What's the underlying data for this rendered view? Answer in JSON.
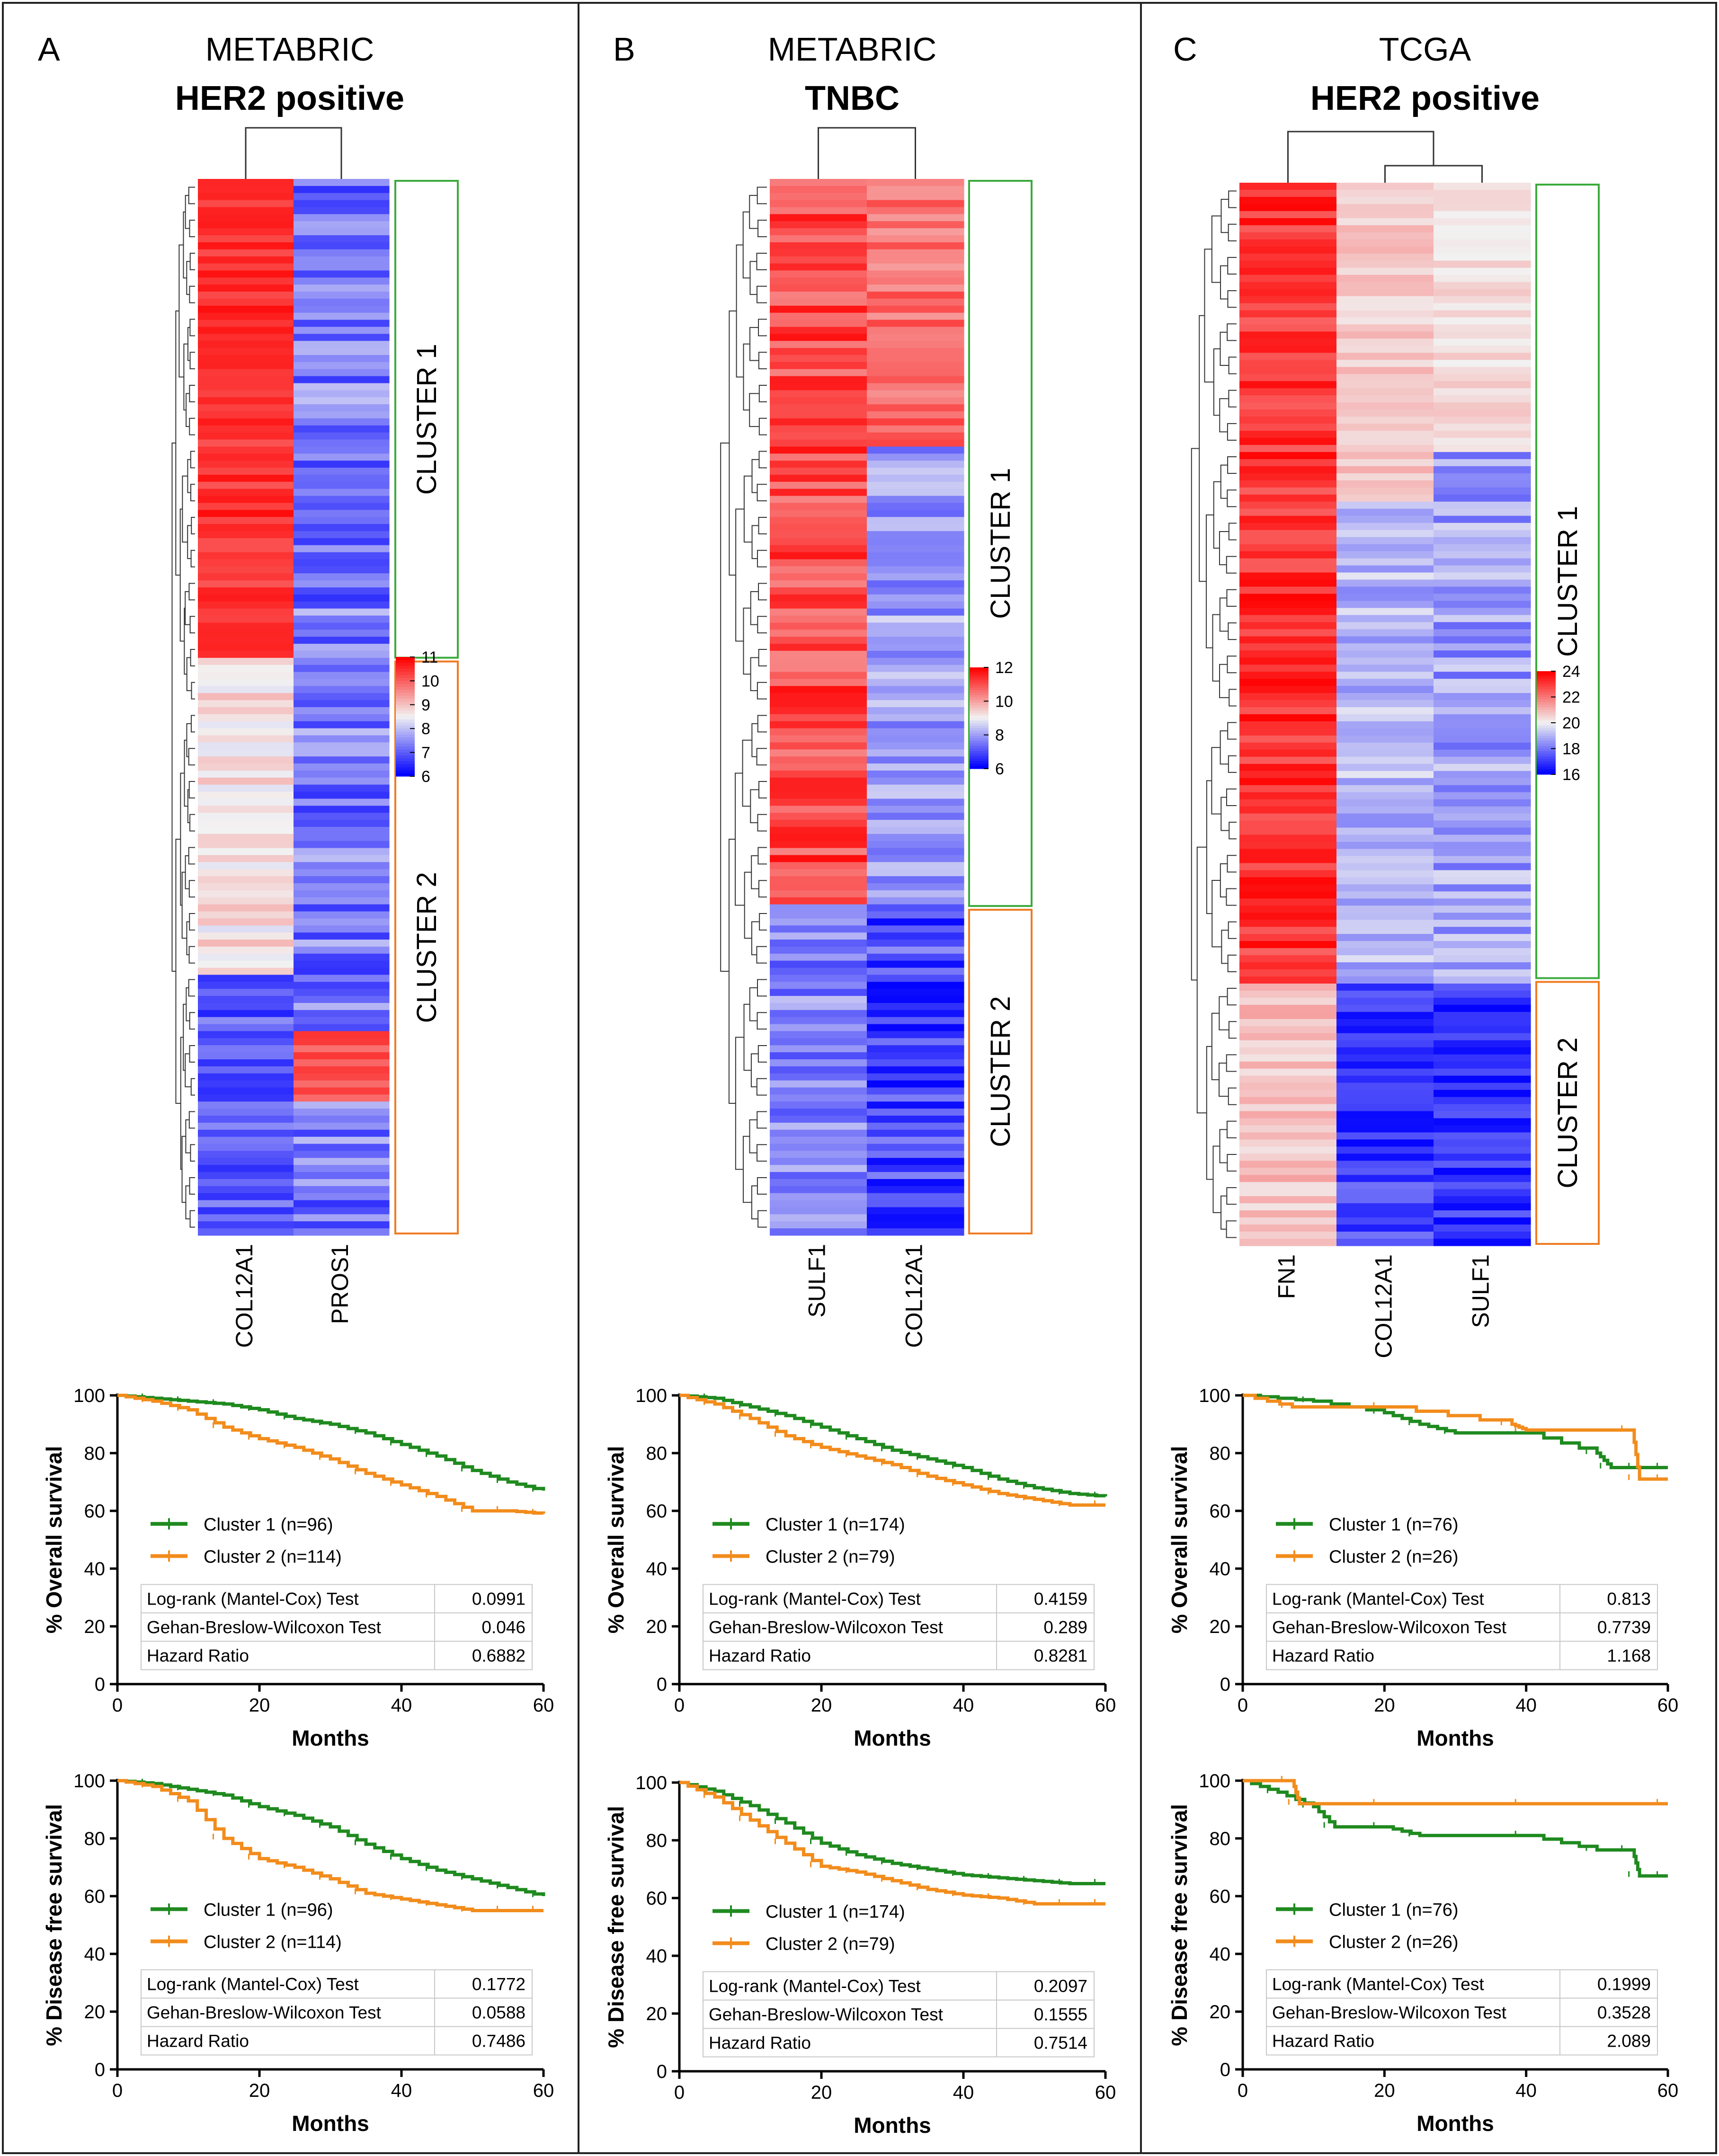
{
  "colors": {
    "cluster1_box": "#3caa3c",
    "cluster2_box": "#ef7b22",
    "cluster1_line": "#1f8a1f",
    "cluster2_line": "#f28c1c",
    "low": "#0000ff",
    "mid": "#f2f2f2",
    "high": "#ff0000"
  },
  "panels": [
    {
      "letter": "A",
      "dataset": "METABRIC",
      "subtype": "HER2 positive",
      "genes": [
        "COL12A1",
        "PROS1"
      ],
      "clusters": [
        {
          "label": "CLUSTER 1",
          "fraction": 0.455
        },
        {
          "label": "CLUSTER 2",
          "fraction": 0.545
        }
      ],
      "colorbar": {
        "ticks": [
          "11",
          "10",
          "9",
          "8",
          "7",
          "6"
        ]
      },
      "os": {
        "ylabel": "% Overall survival",
        "xlabel": "Months",
        "xticks": [
          "0",
          "20",
          "40",
          "60"
        ],
        "yticks": [
          "0",
          "20",
          "40",
          "60",
          "80",
          "100"
        ],
        "legend": [
          "Cluster 1 (n=96)",
          "Cluster 2 (n=114)"
        ],
        "stats": [
          [
            "Log-rank (Mantel-Cox) Test",
            "0.0991"
          ],
          [
            "Gehan-Breslow-Wilcoxon Test",
            "0.046"
          ],
          [
            "Hazard Ratio",
            "0.6882"
          ]
        ]
      },
      "dfs": {
        "ylabel": "% Disease free survival",
        "xlabel": "Months",
        "xticks": [
          "0",
          "20",
          "40",
          "60"
        ],
        "yticks": [
          "0",
          "20",
          "40",
          "60",
          "80",
          "100"
        ],
        "legend": [
          "Cluster 1 (n=96)",
          "Cluster 2 (n=114)"
        ],
        "stats": [
          [
            "Log-rank (Mantel-Cox) Test",
            "0.1772"
          ],
          [
            "Gehan-Breslow-Wilcoxon Test",
            "0.0588"
          ],
          [
            "Hazard Ratio",
            "0.7486"
          ]
        ]
      }
    },
    {
      "letter": "B",
      "dataset": "METABRIC",
      "subtype": "TNBC",
      "genes": [
        "SULF1",
        "COL12A1"
      ],
      "clusters": [
        {
          "label": "CLUSTER 1",
          "fraction": 0.69
        },
        {
          "label": "CLUSTER 2",
          "fraction": 0.31
        }
      ],
      "colorbar": {
        "ticks": [
          "12",
          "10",
          "8",
          "6"
        ]
      },
      "os": {
        "ylabel": "% Overall survival",
        "xlabel": "Months",
        "xticks": [
          "0",
          "20",
          "40",
          "60"
        ],
        "yticks": [
          "0",
          "20",
          "40",
          "60",
          "80",
          "100"
        ],
        "legend": [
          "Cluster 1 (n=174)",
          "Cluster 2 (n=79)"
        ],
        "stats": [
          [
            "Log-rank (Mantel-Cox) Test",
            "0.4159"
          ],
          [
            "Gehan-Breslow-Wilcoxon Test",
            "0.289"
          ],
          [
            "Hazard Ratio",
            "0.8281"
          ]
        ]
      },
      "dfs": {
        "ylabel": "% Disease free survival",
        "xlabel": "Months",
        "xticks": [
          "0",
          "20",
          "40",
          "60"
        ],
        "yticks": [
          "0",
          "20",
          "40",
          "60",
          "80",
          "100"
        ],
        "legend": [
          "Cluster 1 (n=174)",
          "Cluster 2 (n=79)"
        ],
        "stats": [
          [
            "Log-rank (Mantel-Cox) Test",
            "0.2097"
          ],
          [
            "Gehan-Breslow-Wilcoxon Test",
            "0.1555"
          ],
          [
            "Hazard Ratio",
            "0.7514"
          ]
        ]
      }
    },
    {
      "letter": "C",
      "dataset": "TCGA",
      "subtype": "HER2 positive",
      "genes": [
        "FN1",
        "COL12A1",
        "SULF1"
      ],
      "clusters": [
        {
          "label": "CLUSTER 1",
          "fraction": 0.75
        },
        {
          "label": "CLUSTER 2",
          "fraction": 0.25
        }
      ],
      "colorbar": {
        "ticks": [
          "24",
          "22",
          "20",
          "18",
          "16"
        ]
      },
      "os": {
        "ylabel": "% Overall survival",
        "xlabel": "Months",
        "xticks": [
          "0",
          "20",
          "40",
          "60"
        ],
        "yticks": [
          "0",
          "20",
          "40",
          "60",
          "80",
          "100"
        ],
        "legend": [
          "Cluster 1 (n=76)",
          "Cluster 2 (n=26)"
        ],
        "stats": [
          [
            "Log-rank (Mantel-Cox) Test",
            "0.813"
          ],
          [
            "Gehan-Breslow-Wilcoxon Test",
            "0.7739"
          ],
          [
            "Hazard Ratio",
            "1.168"
          ]
        ]
      },
      "dfs": {
        "ylabel": "% Disease free survival",
        "xlabel": "Months",
        "xticks": [
          "0",
          "20",
          "40",
          "60"
        ],
        "yticks": [
          "0",
          "20",
          "40",
          "60",
          "80",
          "100"
        ],
        "legend": [
          "Cluster 1 (n=76)",
          "Cluster 2 (n=26)"
        ],
        "stats": [
          [
            "Log-rank (Mantel-Cox) Test",
            "0.1999"
          ],
          [
            "Gehan-Breslow-Wilcoxon Test",
            "0.3528"
          ],
          [
            "Hazard Ratio",
            "2.089"
          ]
        ]
      }
    }
  ],
  "chart_data": [
    {
      "type": "line",
      "title": "A METABRIC HER2 positive - Overall survival",
      "xlabel": "Months",
      "ylabel": "% Overall survival",
      "xlim": [
        0,
        60
      ],
      "ylim": [
        0,
        100
      ],
      "series": [
        {
          "name": "Cluster 1 (n=96)",
          "x": [
            0,
            5,
            10,
            15,
            20,
            25,
            30,
            35,
            40,
            45,
            50,
            55,
            60
          ],
          "y": [
            100,
            99,
            98,
            97,
            95,
            92,
            90,
            87,
            83,
            79,
            74,
            70,
            67
          ]
        },
        {
          "name": "Cluster 2 (n=114)",
          "x": [
            0,
            5,
            10,
            15,
            20,
            25,
            30,
            35,
            40,
            45,
            50,
            55,
            60
          ],
          "y": [
            100,
            98,
            95,
            89,
            85,
            82,
            78,
            73,
            69,
            65,
            60,
            60,
            59
          ]
        }
      ]
    },
    {
      "type": "line",
      "title": "A METABRIC HER2 positive - Disease free survival",
      "xlabel": "Months",
      "ylabel": "% Disease free survival",
      "xlim": [
        0,
        60
      ],
      "ylim": [
        0,
        100
      ],
      "series": [
        {
          "name": "Cluster 1 (n=96)",
          "x": [
            0,
            5,
            10,
            15,
            20,
            25,
            30,
            35,
            40,
            45,
            50,
            55,
            60
          ],
          "y": [
            100,
            99,
            97,
            95,
            91,
            88,
            84,
            78,
            73,
            69,
            66,
            63,
            60
          ]
        },
        {
          "name": "Cluster 2 (n=114)",
          "x": [
            0,
            5,
            10,
            15,
            20,
            25,
            30,
            35,
            40,
            45,
            50,
            55,
            60
          ],
          "y": [
            100,
            98,
            93,
            80,
            73,
            70,
            66,
            61,
            59,
            57,
            55,
            55,
            55
          ]
        }
      ]
    },
    {
      "type": "line",
      "title": "B METABRIC TNBC - Overall survival",
      "xlabel": "Months",
      "ylabel": "% Overall survival",
      "xlim": [
        0,
        60
      ],
      "ylim": [
        0,
        100
      ],
      "series": [
        {
          "name": "Cluster 1 (n=174)",
          "x": [
            0,
            5,
            10,
            15,
            20,
            25,
            30,
            35,
            40,
            45,
            50,
            55,
            60
          ],
          "y": [
            100,
            99,
            96,
            93,
            89,
            85,
            81,
            78,
            75,
            71,
            68,
            66,
            65
          ]
        },
        {
          "name": "Cluster 2 (n=79)",
          "x": [
            0,
            5,
            10,
            15,
            20,
            25,
            30,
            35,
            40,
            45,
            50,
            55,
            60
          ],
          "y": [
            100,
            97,
            92,
            86,
            82,
            79,
            76,
            72,
            69,
            66,
            64,
            62,
            62
          ]
        }
      ]
    },
    {
      "type": "line",
      "title": "B METABRIC TNBC - Disease free survival",
      "xlabel": "Months",
      "ylabel": "% Disease free survival",
      "xlim": [
        0,
        60
      ],
      "ylim": [
        0,
        100
      ],
      "series": [
        {
          "name": "Cluster 1 (n=174)",
          "x": [
            0,
            5,
            10,
            15,
            20,
            25,
            30,
            35,
            40,
            45,
            50,
            55,
            60
          ],
          "y": [
            100,
            97,
            92,
            86,
            79,
            75,
            72,
            70,
            68,
            67,
            66,
            65,
            65
          ]
        },
        {
          "name": "Cluster 2 (n=79)",
          "x": [
            0,
            5,
            10,
            15,
            20,
            25,
            30,
            35,
            40,
            45,
            50,
            55,
            60
          ],
          "y": [
            100,
            95,
            87,
            79,
            71,
            69,
            66,
            63,
            61,
            60,
            58,
            58,
            58
          ]
        }
      ]
    },
    {
      "type": "line",
      "title": "C TCGA HER2 positive - Overall survival",
      "xlabel": "Months",
      "ylabel": "% Overall survival",
      "xlim": [
        0,
        60
      ],
      "ylim": [
        0,
        100
      ],
      "series": [
        {
          "name": "Cluster 1 (n=76)",
          "x": [
            0,
            10,
            20,
            25,
            30,
            40,
            50,
            52,
            56,
            60
          ],
          "y": [
            100,
            98,
            94,
            90,
            87,
            87,
            80,
            75,
            75,
            75
          ]
        },
        {
          "name": "Cluster 2 (n=26)",
          "x": [
            0,
            7,
            20,
            38,
            40,
            55,
            56,
            60
          ],
          "y": [
            100,
            96,
            96,
            90,
            88,
            88,
            71,
            71
          ]
        }
      ]
    },
    {
      "type": "line",
      "title": "C TCGA HER2 positive - Disease free survival",
      "xlabel": "Months",
      "ylabel": "% Disease free survival",
      "xlim": [
        0,
        60
      ],
      "ylim": [
        0,
        100
      ],
      "series": [
        {
          "name": "Cluster 1 (n=76)",
          "x": [
            0,
            5,
            10,
            13,
            20,
            25,
            40,
            50,
            55,
            56,
            60
          ],
          "y": [
            100,
            96,
            91,
            84,
            84,
            81,
            81,
            76,
            76,
            67,
            67
          ]
        },
        {
          "name": "Cluster 2 (n=26)",
          "x": [
            0,
            7,
            8,
            20,
            40,
            60
          ],
          "y": [
            100,
            100,
            92,
            92,
            92,
            92
          ]
        }
      ]
    }
  ]
}
